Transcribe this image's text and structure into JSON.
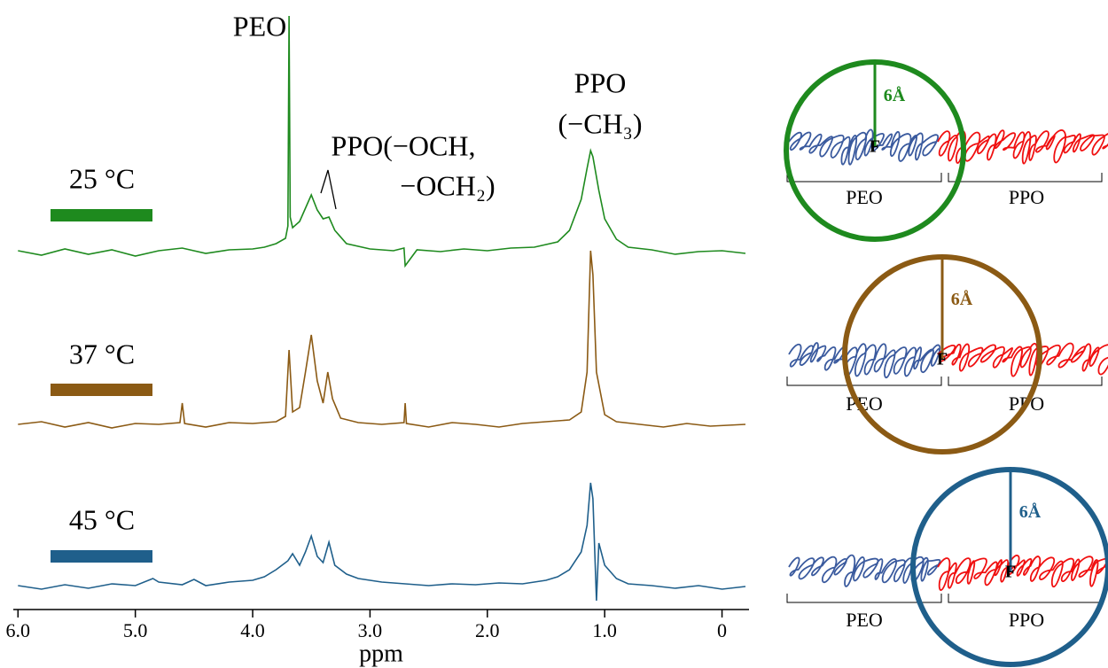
{
  "chart_data": {
    "type": "line",
    "xlabel": "ppm",
    "xlim": [
      6.04,
      -0.23
    ],
    "xticks": [
      {
        "value": 6,
        "label": "6.0"
      },
      {
        "value": 5,
        "label": "5.0"
      },
      {
        "value": 4,
        "label": "4.0"
      },
      {
        "value": 3,
        "label": "3.0"
      },
      {
        "value": 2,
        "label": "2.0"
      },
      {
        "value": 1,
        "label": "1.0"
      },
      0
    ],
    "annotations": [
      "PEO",
      "PPO(−OCH,",
      "−OCH₂)",
      "PPO",
      "(−CH₃)"
    ],
    "series": [
      {
        "name": "25 °C",
        "color": "#1e8a1e",
        "x": [
          6.0,
          5.8,
          5.6,
          5.4,
          5.2,
          5.0,
          4.8,
          4.6,
          4.4,
          4.2,
          4.0,
          3.9,
          3.8,
          3.72,
          3.7,
          3.69,
          3.68,
          3.66,
          3.6,
          3.55,
          3.5,
          3.45,
          3.4,
          3.35,
          3.3,
          3.2,
          3.0,
          2.8,
          2.71,
          2.7,
          2.6,
          2.4,
          2.2,
          2.0,
          1.8,
          1.6,
          1.4,
          1.3,
          1.2,
          1.15,
          1.12,
          1.1,
          1.05,
          1.0,
          0.9,
          0.8,
          0.6,
          0.4,
          0.2,
          0,
          -0.2
        ],
        "values": [
          2,
          -3,
          4,
          -2,
          3,
          -4,
          2,
          5,
          -1,
          3,
          4,
          6,
          10,
          16,
          30,
          267,
          40,
          28,
          35,
          50,
          65,
          48,
          38,
          40,
          25,
          10,
          4,
          2,
          5,
          -15,
          3,
          1,
          4,
          2,
          5,
          6,
          12,
          25,
          60,
          95,
          115,
          108,
          70,
          38,
          15,
          6,
          3,
          -2,
          1,
          2,
          -1
        ]
      },
      {
        "name": "37 °C",
        "color": "#8b5a14",
        "x": [
          6.0,
          5.8,
          5.6,
          5.4,
          5.2,
          5.0,
          4.8,
          4.62,
          4.6,
          4.58,
          4.4,
          4.2,
          4.0,
          3.8,
          3.72,
          3.69,
          3.66,
          3.6,
          3.55,
          3.5,
          3.45,
          3.4,
          3.36,
          3.32,
          3.25,
          3.1,
          2.9,
          2.71,
          2.7,
          2.69,
          2.5,
          2.3,
          2.1,
          1.9,
          1.7,
          1.5,
          1.3,
          1.2,
          1.15,
          1.12,
          1.1,
          1.07,
          1.0,
          0.9,
          0.7,
          0.5,
          0.3,
          0.1,
          -0.2
        ],
        "values": [
          1,
          4,
          -2,
          3,
          -3,
          2,
          1,
          3,
          25,
          2,
          -2,
          3,
          2,
          4,
          10,
          85,
          15,
          20,
          60,
          102,
          50,
          25,
          60,
          30,
          8,
          3,
          1,
          3,
          25,
          2,
          -2,
          3,
          1,
          -2,
          2,
          4,
          6,
          15,
          60,
          197,
          170,
          60,
          12,
          4,
          1,
          -2,
          2,
          -1,
          1
        ]
      },
      {
        "name": "45 °C",
        "color": "#1f5f8b",
        "x": [
          6.0,
          5.8,
          5.6,
          5.4,
          5.2,
          5.0,
          4.85,
          4.8,
          4.6,
          4.5,
          4.4,
          4.2,
          4.0,
          3.9,
          3.8,
          3.7,
          3.66,
          3.6,
          3.55,
          3.5,
          3.45,
          3.4,
          3.35,
          3.3,
          3.2,
          3.1,
          2.9,
          2.7,
          2.5,
          2.3,
          2.1,
          1.9,
          1.7,
          1.5,
          1.4,
          1.3,
          1.2,
          1.15,
          1.12,
          1.1,
          1.07,
          1.05,
          1.0,
          0.9,
          0.8,
          0.6,
          0.4,
          0.2,
          0,
          -0.2
        ],
        "values": [
          2,
          -2,
          3,
          -1,
          4,
          2,
          10,
          6,
          3,
          9,
          2,
          6,
          8,
          12,
          20,
          30,
          38,
          25,
          40,
          58,
          35,
          28,
          51,
          25,
          15,
          10,
          6,
          4,
          2,
          4,
          3,
          5,
          4,
          8,
          12,
          20,
          40,
          70,
          118,
          100,
          -15,
          50,
          25,
          10,
          4,
          2,
          -1,
          2,
          -2,
          1
        ]
      }
    ]
  },
  "diagram": {
    "panels": [
      {
        "color": "#1e8a1e",
        "radius_label": "6Å",
        "center_label": "F",
        "left_label": "PEO",
        "right_label": "PPO"
      },
      {
        "color": "#8b5a14",
        "radius_label": "6Å",
        "center_label": "F",
        "left_label": "PEO",
        "right_label": "PPO"
      },
      {
        "color": "#1f5f8b",
        "radius_label": "6Å",
        "center_label": "F",
        "left_label": "PEO",
        "right_label": "PPO"
      }
    ]
  }
}
